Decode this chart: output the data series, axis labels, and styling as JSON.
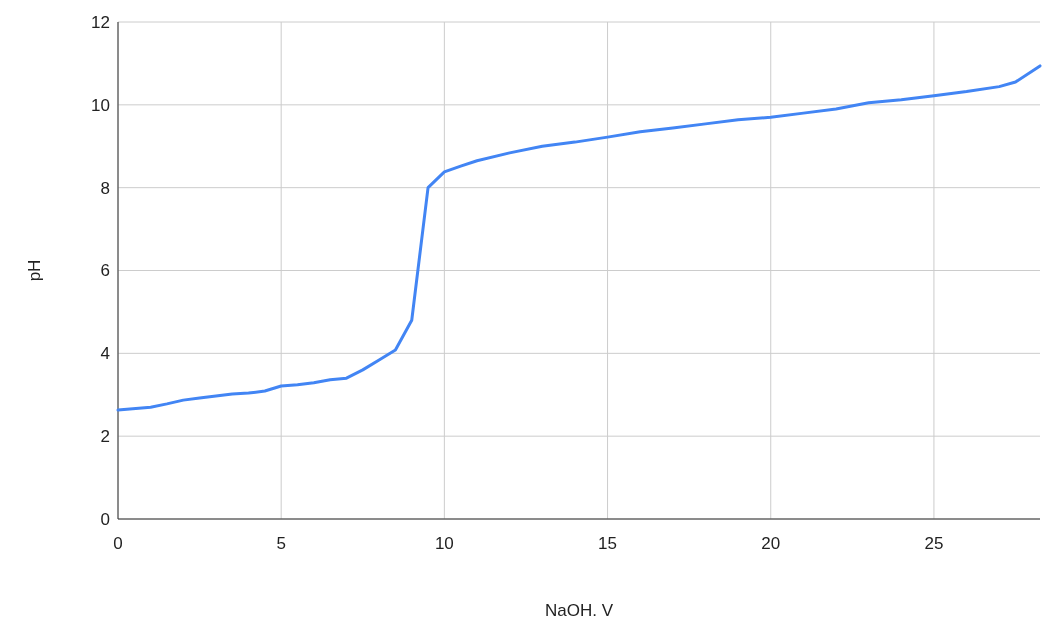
{
  "chart_data": {
    "type": "line",
    "xlabel": "NaOH. V",
    "ylabel": "pH",
    "x": [
      0,
      1,
      1.5,
      2,
      2.5,
      3,
      3.5,
      4,
      4.5,
      5,
      5.5,
      6,
      6.5,
      7,
      7.5,
      8,
      8.5,
      9,
      9.5,
      10,
      10.5,
      11,
      12,
      13,
      14,
      15,
      16,
      17,
      18,
      19,
      20,
      21,
      22,
      23,
      24,
      25,
      26,
      27,
      27.5,
      28.25
    ],
    "series": [
      {
        "color": "#4285f4",
        "values": [
          2.63,
          2.7,
          2.78,
          2.87,
          2.92,
          2.97,
          3.02,
          3.04,
          3.09,
          3.21,
          3.24,
          3.29,
          3.36,
          3.4,
          3.6,
          3.84,
          4.08,
          4.8,
          8.0,
          8.38,
          8.52,
          8.65,
          8.84,
          9.0,
          9.1,
          9.22,
          9.35,
          9.44,
          9.54,
          9.64,
          9.7,
          9.8,
          9.9,
          10.05,
          10.12,
          10.22,
          10.32,
          10.44,
          10.55,
          10.94
        ]
      }
    ],
    "xlim": [
      0,
      28.25
    ],
    "xticks": [
      0,
      5,
      10,
      15,
      20,
      25
    ],
    "ylim": [
      0,
      12
    ],
    "yticks": [
      0,
      2,
      4,
      6,
      8,
      10,
      12
    ],
    "grid": true,
    "marker": "none",
    "line_style": "solid"
  }
}
